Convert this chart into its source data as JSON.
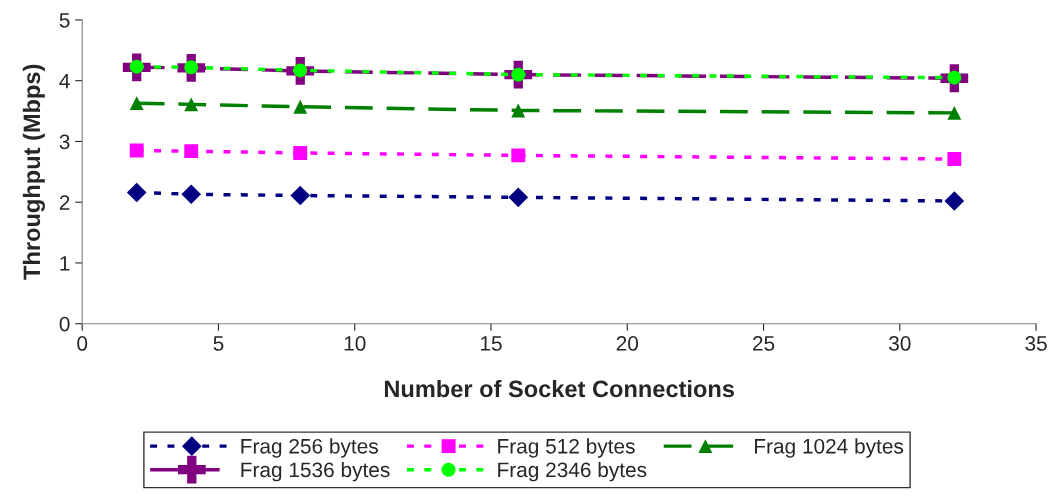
{
  "chart_data": {
    "type": "line",
    "xlabel": "Number of Socket Connections",
    "ylabel": "Throughput (Mbps)",
    "x": [
      2,
      4,
      8,
      16,
      32
    ],
    "series": [
      {
        "name": "Frag 256 bytes",
        "color": "#000080",
        "marker": "diamond",
        "line_style": "dotted",
        "values": [
          2.16,
          2.13,
          2.11,
          2.08,
          2.02
        ]
      },
      {
        "name": "Frag 512 bytes",
        "color": "#ff00ff",
        "marker": "square",
        "line_style": "dotted",
        "values": [
          2.85,
          2.84,
          2.81,
          2.77,
          2.71
        ]
      },
      {
        "name": "Frag 1024 bytes",
        "color": "#008000",
        "marker": "triangle",
        "line_style": "dashed",
        "values": [
          3.63,
          3.61,
          3.57,
          3.51,
          3.47
        ]
      },
      {
        "name": "Frag 1536 bytes",
        "color": "#800080",
        "marker": "cross",
        "line_style": "dashed",
        "values": [
          4.22,
          4.21,
          4.16,
          4.1,
          4.04
        ]
      },
      {
        "name": "Frag 2346 bytes",
        "color": "#00ff00",
        "marker": "circle",
        "line_style": "dotted",
        "values": [
          4.23,
          4.22,
          4.17,
          4.1,
          4.05
        ]
      }
    ],
    "xlim": [
      0,
      35
    ],
    "xticks": [
      0,
      5,
      10,
      15,
      20,
      25,
      30,
      35
    ],
    "ylim": [
      0,
      5
    ],
    "yticks": [
      0,
      1,
      2,
      3,
      4,
      5
    ],
    "grid": false,
    "legend": "bottom"
  }
}
